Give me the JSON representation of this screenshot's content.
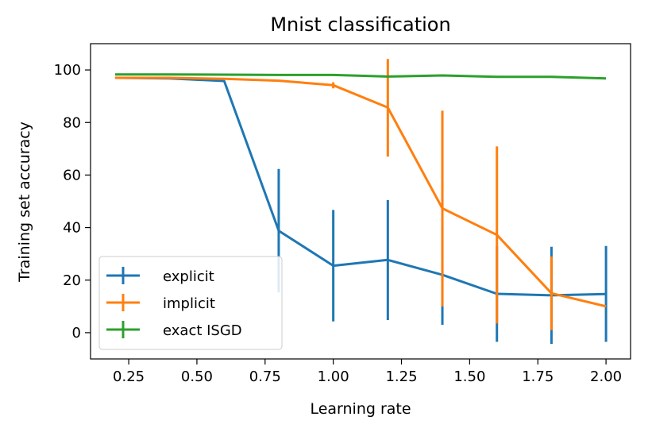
{
  "chart_data": {
    "type": "line",
    "title": "Mnist classification",
    "xlabel": "Learning rate",
    "ylabel": "Training set accuracy",
    "xlim": [
      0.11,
      2.09
    ],
    "ylim": [
      -10,
      110
    ],
    "xticks": [
      0.25,
      0.5,
      0.75,
      1.0,
      1.25,
      1.5,
      1.75,
      2.0
    ],
    "xtick_labels": [
      "0.25",
      "0.50",
      "0.75",
      "1.00",
      "1.25",
      "1.50",
      "1.75",
      "2.00"
    ],
    "yticks": [
      0,
      20,
      40,
      60,
      80,
      100
    ],
    "ytick_labels": [
      "0",
      "20",
      "40",
      "60",
      "80",
      "100"
    ],
    "grid": false,
    "legend_position": "bottom-left",
    "series": [
      {
        "name": "explicit",
        "color": "#1f77b4",
        "x": [
          0.2,
          0.4,
          0.6,
          0.8,
          1.0,
          1.2,
          1.4,
          1.6,
          1.8,
          2.0
        ],
        "y": [
          97.0,
          96.8,
          95.8,
          38.8,
          25.5,
          27.7,
          22.0,
          14.8,
          14.2,
          14.7
        ],
        "err_low": [
          97.0,
          96.8,
          95.8,
          15.3,
          4.3,
          4.8,
          3.0,
          -3.5,
          -4.3,
          -3.5
        ],
        "err_high": [
          97.0,
          96.8,
          95.8,
          62.3,
          46.7,
          50.5,
          41.0,
          33.0,
          32.7,
          33.0
        ]
      },
      {
        "name": "implicit",
        "color": "#ff7f0e",
        "x": [
          0.2,
          0.4,
          0.6,
          0.8,
          1.0,
          1.2,
          1.4,
          1.6,
          1.8,
          2.0
        ],
        "y": [
          97.0,
          97.0,
          96.6,
          95.9,
          94.2,
          85.7,
          47.3,
          37.2,
          15.0,
          10.0
        ],
        "err_low": [
          97.0,
          97.0,
          96.6,
          95.9,
          93.0,
          67.0,
          10.0,
          3.5,
          1.0,
          10.0
        ],
        "err_high": [
          97.0,
          97.0,
          96.6,
          95.9,
          95.3,
          104.2,
          84.5,
          70.9,
          29.0,
          10.0
        ]
      },
      {
        "name": "exact ISGD",
        "color": "#2ca02c",
        "x": [
          0.2,
          0.4,
          0.6,
          0.8,
          1.0,
          1.2,
          1.4,
          1.6,
          1.8,
          2.0
        ],
        "y": [
          98.3,
          98.3,
          98.2,
          98.1,
          98.1,
          97.5,
          97.9,
          97.4,
          97.4,
          96.8
        ],
        "err_low": [
          98.3,
          98.3,
          98.2,
          98.1,
          98.1,
          97.5,
          97.9,
          97.4,
          97.4,
          96.8
        ],
        "err_high": [
          98.3,
          98.3,
          98.2,
          98.1,
          98.1,
          97.5,
          97.9,
          97.4,
          97.4,
          96.8
        ]
      }
    ]
  }
}
